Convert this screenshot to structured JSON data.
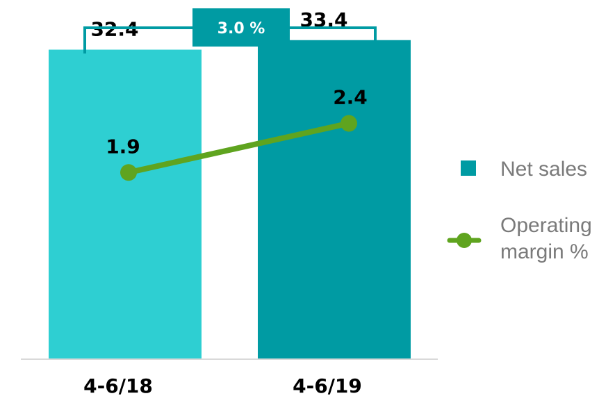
{
  "chart_data": {
    "type": "bar",
    "categories": [
      "4-6/18",
      "4-6/19"
    ],
    "series": [
      {
        "name": "Net sales",
        "kind": "bar",
        "values": [
          32.4,
          33.4
        ],
        "colors": [
          "#2ecfd2",
          "#009ba3"
        ]
      },
      {
        "name": "Operating margin %",
        "kind": "line",
        "values": [
          1.9,
          2.4
        ],
        "color": "#5fa41f"
      }
    ],
    "growth_annotation": {
      "label": "3.0 %",
      "color": "#009ba3"
    },
    "legend": {
      "placement": "right",
      "items": [
        {
          "label": "Net sales",
          "marker": "square",
          "color": "#009ba3"
        },
        {
          "label_lines": [
            "Operating",
            "margin %"
          ],
          "marker": "line-dot",
          "color": "#5fa41f"
        }
      ]
    },
    "bar_ylim": [
      0,
      36
    ],
    "line_ylim": [
      0,
      3.5
    ],
    "grid": false,
    "axis_color": "#d9d9d9"
  }
}
